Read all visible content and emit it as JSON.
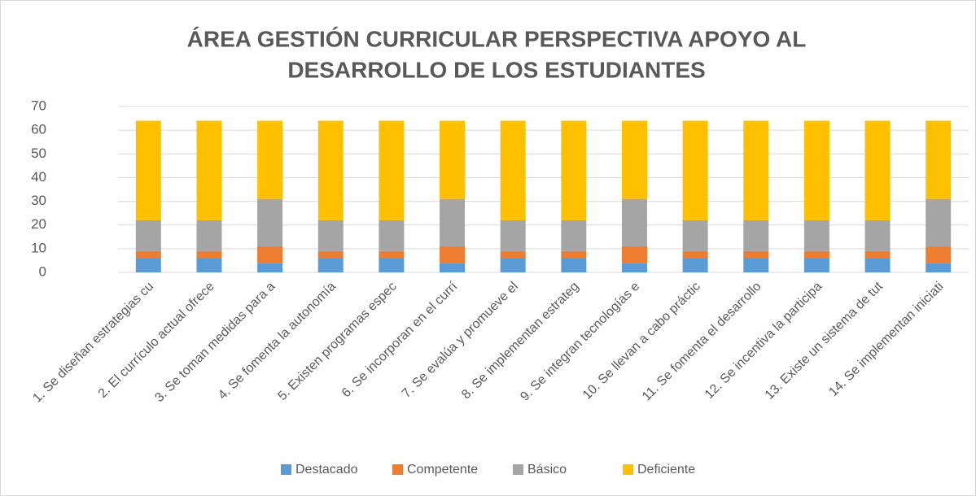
{
  "chart_data": {
    "type": "stacked_bar",
    "title": [
      "ÁREA GESTIÓN CURRICULAR PERSPECTIVA APOYO AL",
      "DESARROLLO DE LOS ESTUDIANTES"
    ],
    "categories": [
      "1. Se diseñan estrategias cu",
      "2. El currículo actual ofrece",
      "3. Se toman medidas para a",
      "4. Se fomenta la autonomía",
      "5. Existen programas espec",
      "6. Se incorporan en el currí",
      "7. Se evalúa y promueve el",
      "8. Se implementan estrateg",
      "9. Se integran tecnologías e",
      "10. Se llevan a cabo práctic",
      "11. Se fomenta el desarrollo",
      "12. Se incentiva la participa",
      "13. Existe un sistema de tut",
      "14. Se implementan iniciati"
    ],
    "series": [
      {
        "name": "Destacado",
        "color": "#5b9bd5",
        "values": [
          6,
          6,
          4,
          6,
          6,
          4,
          6,
          6,
          4,
          6,
          6,
          6,
          6,
          4
        ]
      },
      {
        "name": "Competente",
        "color": "#ed7d31",
        "values": [
          3,
          3,
          7,
          3,
          3,
          7,
          3,
          3,
          7,
          3,
          3,
          3,
          3,
          7
        ]
      },
      {
        "name": "Básico",
        "color": "#a5a5a5",
        "values": [
          13,
          13,
          20,
          13,
          13,
          20,
          13,
          13,
          20,
          13,
          13,
          13,
          13,
          20
        ]
      },
      {
        "name": "Deficiente",
        "color": "#ffc000",
        "values": [
          42,
          42,
          33,
          42,
          42,
          33,
          42,
          42,
          33,
          42,
          42,
          42,
          42,
          33
        ]
      }
    ],
    "ylim": [
      0,
      70
    ],
    "yticks": [
      0,
      10,
      20,
      30,
      40,
      50,
      60,
      70
    ],
    "grid": true,
    "legend": "bottom"
  }
}
